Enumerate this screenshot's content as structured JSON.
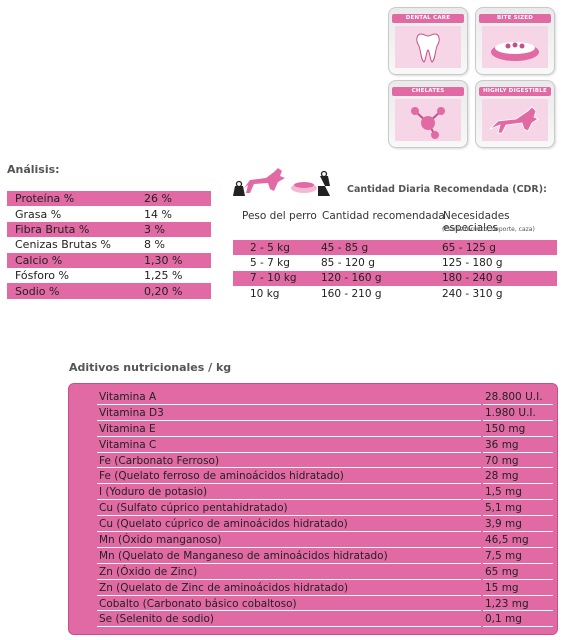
{
  "badges": [
    {
      "label": "DENTAL CARE",
      "icon": "dental-care-icon"
    },
    {
      "label": "BITE SIZED",
      "icon": "bite-sized-icon"
    },
    {
      "label": "CHELATES",
      "icon": "chelates-icon"
    },
    {
      "label": "HIGHLY DIGESTIBLE",
      "icon": "highly-digestible-icon"
    }
  ],
  "analysis": {
    "title": "Análisis:",
    "rows": [
      {
        "name": "Proteína %",
        "value": "26 %"
      },
      {
        "name": "Grasa %",
        "value": "14 %"
      },
      {
        "name": "Fibra Bruta %",
        "value": "3 %"
      },
      {
        "name": "Cenizas Brutas %",
        "value": "8 %"
      },
      {
        "name": "Calcio %",
        "value": "1,30 %"
      },
      {
        "name": "Fósforo %",
        "value": "1,25 %"
      },
      {
        "name": "Sodio %",
        "value": "0,20 %"
      }
    ]
  },
  "cdr": {
    "title": "Cantidad Diaria Recomendada (CDR):",
    "headers": [
      "Peso del perro",
      "Cantidad recomendada",
      "Necesidades especiales"
    ],
    "subheader": "(Estrés termico, deporte, caza)",
    "rows": [
      [
        "2 - 5 kg",
        "45 - 85 g",
        "65 - 125 g"
      ],
      [
        "5 - 7 kg",
        "85 - 120 g",
        "125 - 180 g"
      ],
      [
        "7 - 10 kg",
        "120 - 160 g",
        "180 - 240 g"
      ],
      [
        "10 kg",
        "160 - 210 g",
        "240 - 310 g"
      ]
    ]
  },
  "additives": {
    "title": "Aditivos nutricionales / kg",
    "rows": [
      {
        "name": "Vitamina A",
        "value": "28.800 U.I."
      },
      {
        "name": "Vitamina D3",
        "value": "1.980 U.I."
      },
      {
        "name": "Vitamina E",
        "value": "150 mg"
      },
      {
        "name": "Vitamina C",
        "value": "36 mg"
      },
      {
        "name": "Fe (Carbonato Ferroso)",
        "value": "70 mg"
      },
      {
        "name": "Fe (Quelato ferroso de aminoácidos hidratado)",
        "value": "28 mg"
      },
      {
        "name": "I (Yoduro de potasio)",
        "value": "1,5 mg"
      },
      {
        "name": "Cu (Sulfato cúprico pentahidratado)",
        "value": "5,1 mg"
      },
      {
        "name": "Cu (Quelato cúprico de aminoácidos hidratado)",
        "value": "3,9 mg"
      },
      {
        "name": "Mn (Óxido manganoso)",
        "value": "46,5 mg"
      },
      {
        "name": "Mn (Quelato de Manganeso de aminoácidos hidratado)",
        "value": "7,5 mg"
      },
      {
        "name": "Zn (Óxido de Zinc)",
        "value": "65 mg"
      },
      {
        "name": "Zn (Quelato de Zinc de aminoácidos hidratado)",
        "value": "15 mg"
      },
      {
        "name": "Cobalto (Carbonato básico cobaltoso)",
        "value": "1,23 mg"
      },
      {
        "name": "Se (Selenito de sodio)",
        "value": "0,1 mg"
      }
    ]
  },
  "colors": {
    "accent": "#e26aa4",
    "text": "#222222",
    "heading": "#555555"
  }
}
